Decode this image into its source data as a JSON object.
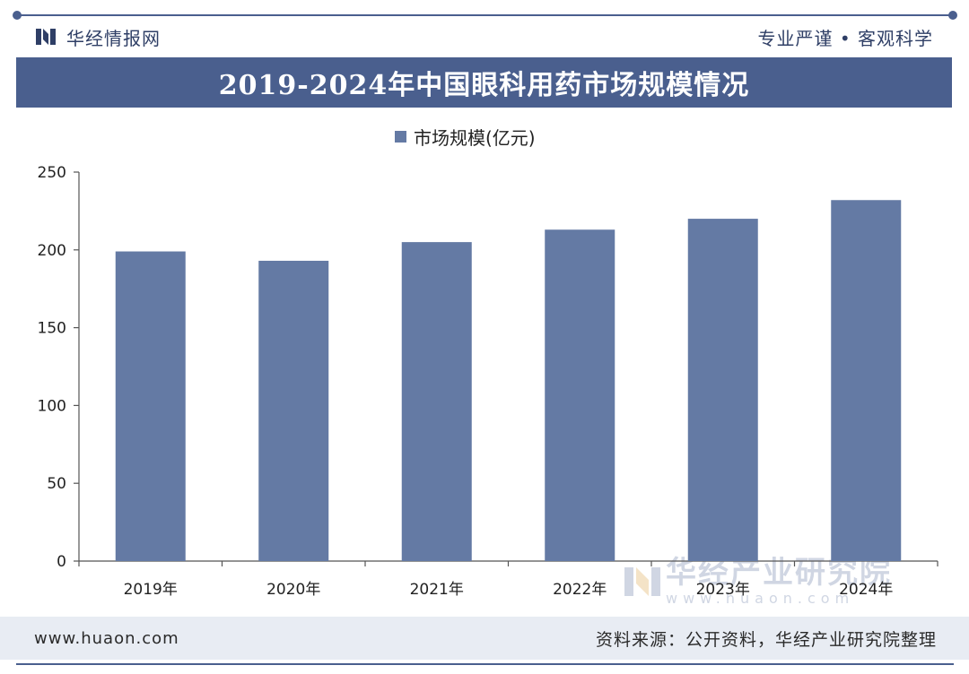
{
  "header": {
    "logo_text": "华经情报网",
    "slogan": "专业严谨 • 客观科学"
  },
  "title": "2019-2024年中国眼科用药市场规模情况",
  "chart_data": {
    "type": "bar",
    "title": "2019-2024年中国眼科用药市场规模情况",
    "categories": [
      "2019年",
      "2020年",
      "2021年",
      "2022年",
      "2023年",
      "2024年"
    ],
    "series": [
      {
        "name": "市场规模(亿元)",
        "values": [
          199,
          193,
          205,
          213,
          220,
          232
        ]
      }
    ],
    "ylim": [
      0,
      250
    ],
    "yticks": [
      "0",
      "50",
      "100",
      "150",
      "200",
      "250"
    ],
    "xlabel": "",
    "ylabel": "",
    "legend": "top-center",
    "grid": false,
    "colors": {
      "bar": "#647aa4",
      "accent": "#4a5f8e"
    }
  },
  "watermark": {
    "cn": "华经产业研究院",
    "en": "www.huaon.com"
  },
  "footer": {
    "url": "www.huaon.com",
    "source": "资料来源：公开资料，华经产业研究院整理"
  }
}
